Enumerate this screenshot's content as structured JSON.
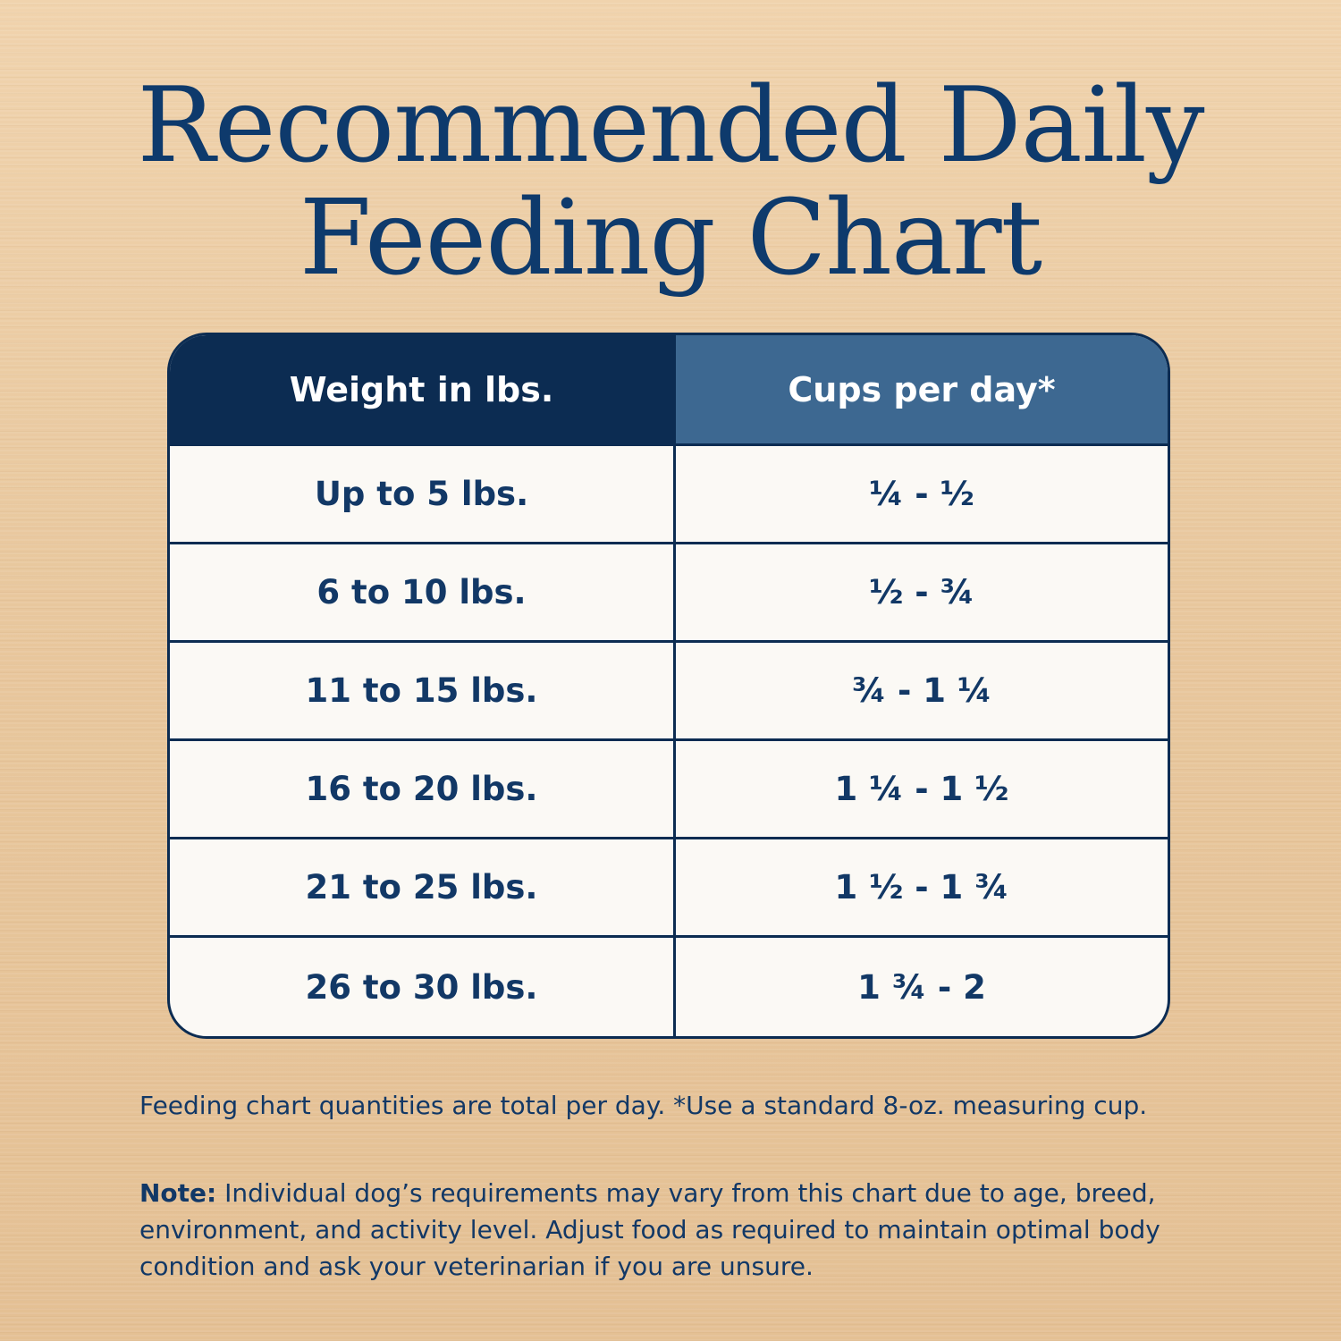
{
  "title": {
    "line1": "Recommended Daily",
    "line2": "Feeding Chart"
  },
  "table": {
    "headers": {
      "weight": "Weight in lbs.",
      "cups": "Cups per day*"
    },
    "rows": [
      {
        "weight": "Up to 5 lbs.",
        "cups": "¼ - ½"
      },
      {
        "weight": "6 to 10 lbs.",
        "cups": "½ - ¾"
      },
      {
        "weight": "11 to  15 lbs.",
        "cups": "¾ - 1 ¼"
      },
      {
        "weight": "16 to 20 lbs.",
        "cups": "1 ¼ - 1 ½"
      },
      {
        "weight": "21 to 25 lbs.",
        "cups": "1 ½ - 1 ¾"
      },
      {
        "weight": "26 to 30 lbs.",
        "cups": "1 ¾ - 2"
      }
    ]
  },
  "footnote": "Feeding chart quantities are total per day. *Use a standard 8-oz. measuring cup.",
  "note": {
    "label": "Note:",
    "text": " Individual dog’s requirements may vary from this chart due to age, breed, environment, and activity level. Adjust food as required to maintain optimal body condition and ask your veterinarian if you are unsure."
  },
  "colors": {
    "navy": "#0c2c52",
    "header_blue": "#3d6891",
    "text_navy": "#123866",
    "background": "#e9c89c"
  }
}
